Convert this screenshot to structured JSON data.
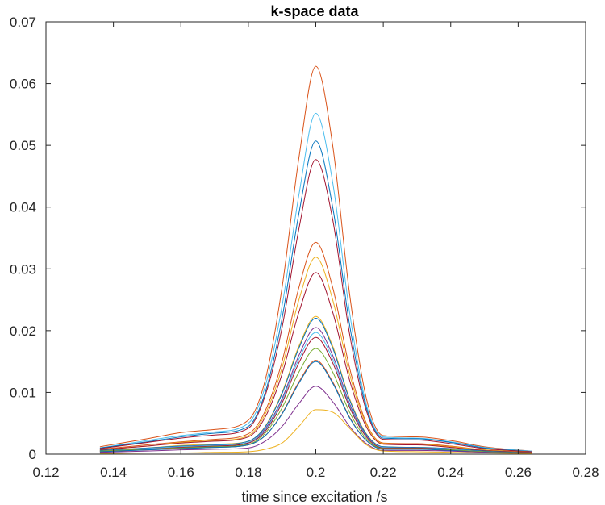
{
  "chart_data": {
    "type": "line",
    "title": "k-space data",
    "xlabel": "time since excitation /s",
    "ylabel": "",
    "xlim": [
      0.12,
      0.28
    ],
    "ylim": [
      0,
      0.07
    ],
    "x_ticks": [
      "0.12",
      "0.14",
      "0.16",
      "0.18",
      "0.2",
      "0.22",
      "0.24",
      "0.26",
      "0.28"
    ],
    "y_ticks": [
      "0",
      "0.01",
      "0.02",
      "0.03",
      "0.04",
      "0.05",
      "0.06",
      "0.07"
    ],
    "grid": false,
    "legend": "none",
    "x": [
      0.136,
      0.15,
      0.16,
      0.17,
      0.18,
      0.185,
      0.19,
      0.195,
      0.2,
      0.205,
      0.21,
      0.215,
      0.22,
      0.23,
      0.24,
      0.25,
      0.264
    ],
    "series": [
      {
        "color": "#D95319",
        "values": [
          0.0012,
          0.0025,
          0.0035,
          0.004,
          0.0055,
          0.012,
          0.027,
          0.048,
          0.0628,
          0.05,
          0.026,
          0.009,
          0.003,
          0.0028,
          0.0022,
          0.0012,
          0.0005
        ]
      },
      {
        "color": "#4DBEEE",
        "values": [
          0.001,
          0.0022,
          0.003,
          0.0036,
          0.005,
          0.011,
          0.024,
          0.042,
          0.0552,
          0.044,
          0.023,
          0.008,
          0.0028,
          0.0026,
          0.002,
          0.0011,
          0.0005
        ]
      },
      {
        "color": "#0072BD",
        "values": [
          0.001,
          0.002,
          0.0028,
          0.0034,
          0.0045,
          0.01,
          0.022,
          0.039,
          0.0507,
          0.04,
          0.021,
          0.0075,
          0.0026,
          0.0025,
          0.0019,
          0.001,
          0.0004
        ]
      },
      {
        "color": "#A2142F",
        "values": [
          0.0009,
          0.0019,
          0.0026,
          0.0031,
          0.0042,
          0.0095,
          0.0205,
          0.0365,
          0.0477,
          0.038,
          0.0195,
          0.007,
          0.0024,
          0.0023,
          0.0017,
          0.0009,
          0.0004
        ]
      },
      {
        "color": "#D95319",
        "values": [
          0.0008,
          0.0015,
          0.002,
          0.0024,
          0.0033,
          0.007,
          0.015,
          0.027,
          0.0343,
          0.027,
          0.014,
          0.005,
          0.0018,
          0.0017,
          0.0013,
          0.0007,
          0.0003
        ]
      },
      {
        "color": "#EDB120",
        "values": [
          0.0007,
          0.0013,
          0.0019,
          0.0022,
          0.003,
          0.0065,
          0.014,
          0.025,
          0.0319,
          0.025,
          0.013,
          0.0048,
          0.0017,
          0.0016,
          0.0012,
          0.0007,
          0.0003
        ]
      },
      {
        "color": "#A2142F",
        "values": [
          0.0007,
          0.0013,
          0.0018,
          0.0021,
          0.0028,
          0.006,
          0.013,
          0.023,
          0.0294,
          0.023,
          0.012,
          0.0044,
          0.0016,
          0.0015,
          0.0011,
          0.0006,
          0.0003
        ]
      },
      {
        "color": "#EDB120",
        "values": [
          0.0006,
          0.001,
          0.0014,
          0.0016,
          0.0021,
          0.0045,
          0.01,
          0.0175,
          0.0223,
          0.0175,
          0.009,
          0.0033,
          0.0012,
          0.0011,
          0.0009,
          0.0005,
          0.0002
        ]
      },
      {
        "color": "#0072BD",
        "values": [
          0.0006,
          0.001,
          0.0013,
          0.0015,
          0.0021,
          0.0044,
          0.0098,
          0.0172,
          0.022,
          0.0172,
          0.0088,
          0.0032,
          0.0012,
          0.0011,
          0.0009,
          0.0005,
          0.0002
        ]
      },
      {
        "color": "#7E2F8E",
        "values": [
          0.0005,
          0.0009,
          0.0012,
          0.0014,
          0.0019,
          0.0041,
          0.009,
          0.016,
          0.0205,
          0.016,
          0.0082,
          0.003,
          0.0011,
          0.001,
          0.0008,
          0.0004,
          0.0002
        ]
      },
      {
        "color": "#4DBEEE",
        "values": [
          0.0005,
          0.0009,
          0.0012,
          0.0014,
          0.0019,
          0.0039,
          0.0087,
          0.0154,
          0.0197,
          0.0154,
          0.0079,
          0.0029,
          0.0011,
          0.001,
          0.0008,
          0.0004,
          0.0002
        ]
      },
      {
        "color": "#A2142F",
        "values": [
          0.0005,
          0.0008,
          0.0011,
          0.0013,
          0.0018,
          0.0037,
          0.0083,
          0.0148,
          0.0189,
          0.0148,
          0.0076,
          0.0028,
          0.001,
          0.001,
          0.0007,
          0.0004,
          0.0002
        ]
      },
      {
        "color": "#77AC30",
        "values": [
          0.0005,
          0.0008,
          0.001,
          0.0012,
          0.0016,
          0.0034,
          0.0075,
          0.0133,
          0.0171,
          0.0133,
          0.0068,
          0.0025,
          0.0009,
          0.0009,
          0.0007,
          0.0004,
          0.0002
        ]
      },
      {
        "color": "#D95319",
        "values": [
          0.0004,
          0.0007,
          0.0009,
          0.0011,
          0.0015,
          0.003,
          0.0066,
          0.0117,
          0.0152,
          0.0117,
          0.006,
          0.0022,
          0.0008,
          0.0008,
          0.0006,
          0.0003,
          0.0002
        ]
      },
      {
        "color": "#0072BD",
        "values": [
          0.0004,
          0.0007,
          0.0009,
          0.0011,
          0.0015,
          0.003,
          0.0065,
          0.0115,
          0.015,
          0.0115,
          0.0059,
          0.0022,
          0.0008,
          0.0008,
          0.0006,
          0.0003,
          0.0002
        ]
      },
      {
        "color": "#7E2F8E",
        "values": [
          0.0003,
          0.0005,
          0.0007,
          0.0008,
          0.001,
          0.0021,
          0.0045,
          0.0082,
          0.011,
          0.0085,
          0.0045,
          0.0017,
          0.0006,
          0.0006,
          0.0005,
          0.0003,
          0.0001
        ]
      },
      {
        "color": "#EDB120",
        "values": [
          0.0001,
          0.0002,
          0.0002,
          0.0003,
          0.0004,
          0.0008,
          0.0018,
          0.0045,
          0.0072,
          0.0068,
          0.0042,
          0.0015,
          0.0005,
          0.0004,
          0.0003,
          0.0002,
          0.0001
        ]
      }
    ]
  }
}
